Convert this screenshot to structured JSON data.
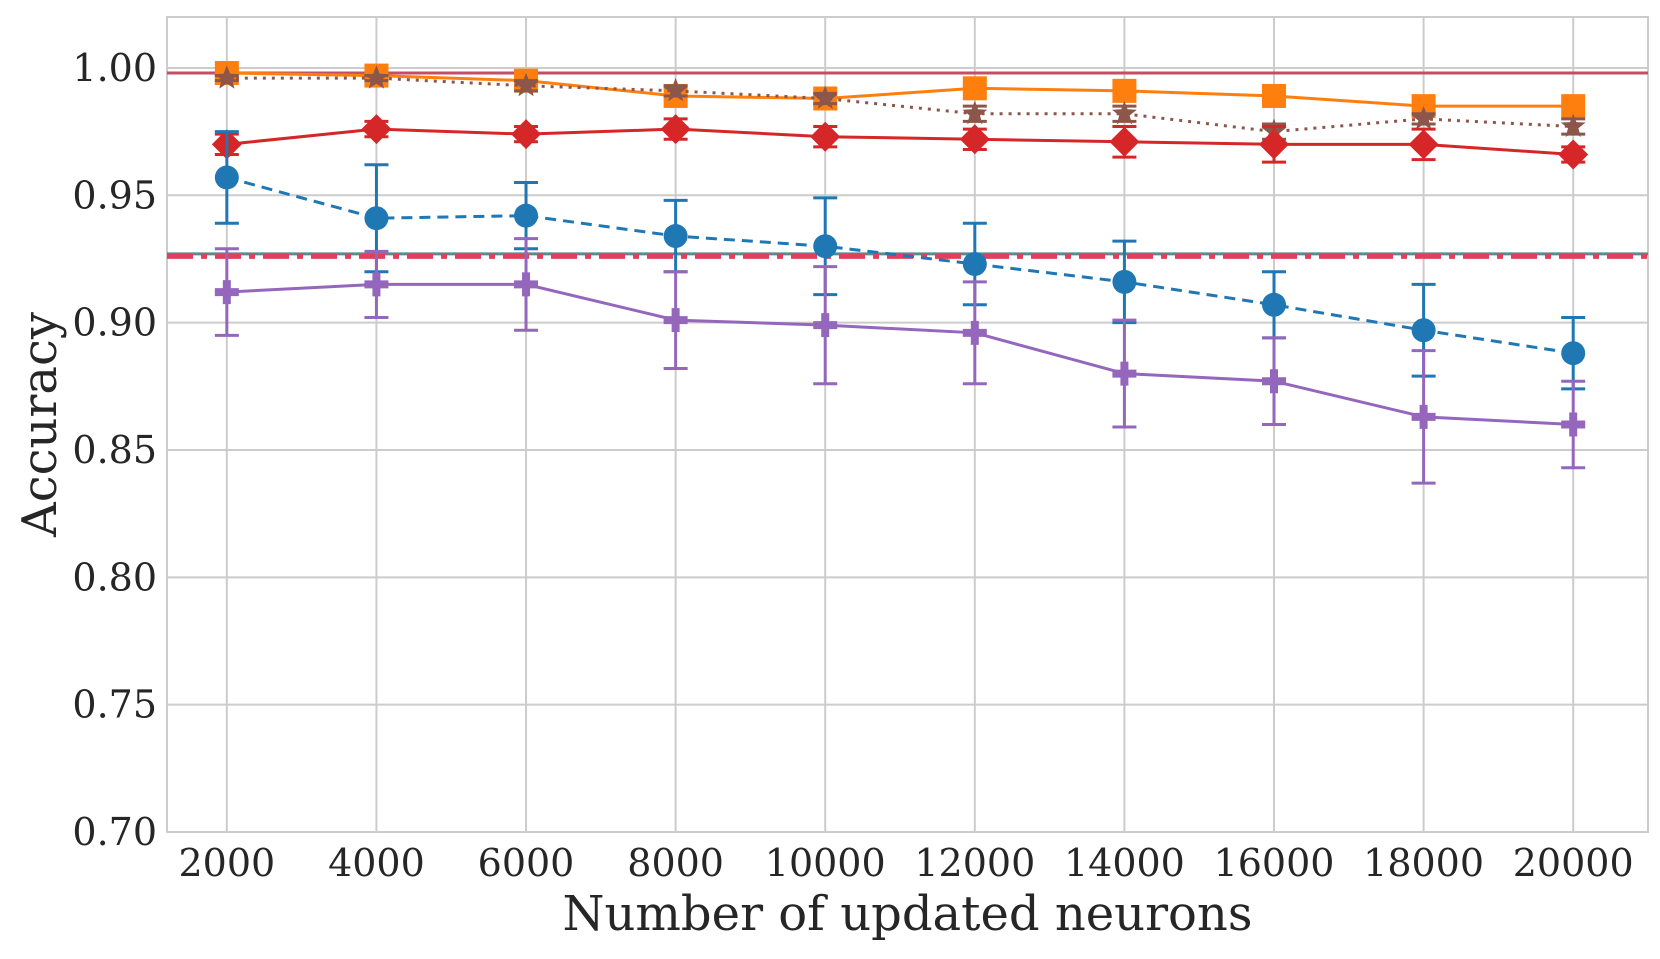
{
  "chart_data": {
    "type": "line",
    "title": "",
    "xlabel": "Number of updated neurons",
    "ylabel": "Accuracy",
    "x": [
      2000,
      4000,
      6000,
      8000,
      10000,
      12000,
      14000,
      16000,
      18000,
      20000
    ],
    "x_tick_labels": [
      "2000",
      "4000",
      "6000",
      "8000",
      "10000",
      "12000",
      "14000",
      "16000",
      "18000",
      "20000"
    ],
    "xlim": [
      1200,
      21000
    ],
    "ylim": [
      0.7,
      1.02
    ],
    "y_ticks": [
      0.7,
      0.75,
      0.8,
      0.85,
      0.9,
      0.95,
      1.0
    ],
    "y_tick_labels": [
      "0.70",
      "0.75",
      "0.80",
      "0.85",
      "0.90",
      "0.95",
      "1.00"
    ],
    "grid": true,
    "series": [
      {
        "name": "orange-square",
        "color": "#ff7f0e",
        "marker": "square",
        "line_style": "solid",
        "values": [
          0.998,
          0.997,
          0.995,
          0.989,
          0.988,
          0.992,
          0.991,
          0.989,
          0.985,
          0.985
        ],
        "errors": null
      },
      {
        "name": "brown-star",
        "color": "#8c564b",
        "marker": "star",
        "line_style": "dotted",
        "values": [
          0.996,
          0.996,
          0.993,
          0.991,
          0.988,
          0.982,
          0.982,
          0.975,
          0.98,
          0.977
        ],
        "errors": [
          0.001,
          0.001,
          0.002,
          0.002,
          0.002,
          0.003,
          0.003,
          0.003,
          0.002,
          0.003
        ]
      },
      {
        "name": "red-diamond",
        "color": "#d62728",
        "marker": "diamond",
        "line_style": "solid",
        "values": [
          0.97,
          0.976,
          0.974,
          0.976,
          0.973,
          0.972,
          0.971,
          0.97,
          0.97,
          0.966
        ],
        "errors": [
          0.004,
          0.003,
          0.003,
          0.004,
          0.004,
          0.004,
          0.006,
          0.007,
          0.006,
          0.003
        ]
      },
      {
        "name": "blue-circle",
        "color": "#1f77b4",
        "marker": "circle",
        "line_style": "dashed",
        "values": [
          0.957,
          0.941,
          0.942,
          0.934,
          0.93,
          0.923,
          0.916,
          0.907,
          0.897,
          0.888
        ],
        "errors": [
          0.018,
          0.021,
          0.013,
          0.014,
          0.019,
          0.016,
          0.016,
          0.013,
          0.018,
          0.014
        ]
      },
      {
        "name": "purple-plus",
        "color": "#9467bd",
        "marker": "plus",
        "line_style": "solid",
        "values": [
          0.912,
          0.915,
          0.915,
          0.901,
          0.899,
          0.896,
          0.88,
          0.877,
          0.863,
          0.86
        ],
        "errors": [
          0.017,
          0.013,
          0.018,
          0.019,
          0.023,
          0.02,
          0.021,
          0.017,
          0.026,
          0.017
        ]
      }
    ],
    "reference_lines": [
      {
        "name": "upper-reference",
        "y": 0.998,
        "color": "#c44e66",
        "style": "solid"
      },
      {
        "name": "middle-reference-solid",
        "y": 0.927,
        "color": "#5c8a8a",
        "style": "solid"
      },
      {
        "name": "middle-reference-dashdot",
        "y": 0.926,
        "color": "#e0405c",
        "style": "dashdot"
      }
    ]
  }
}
